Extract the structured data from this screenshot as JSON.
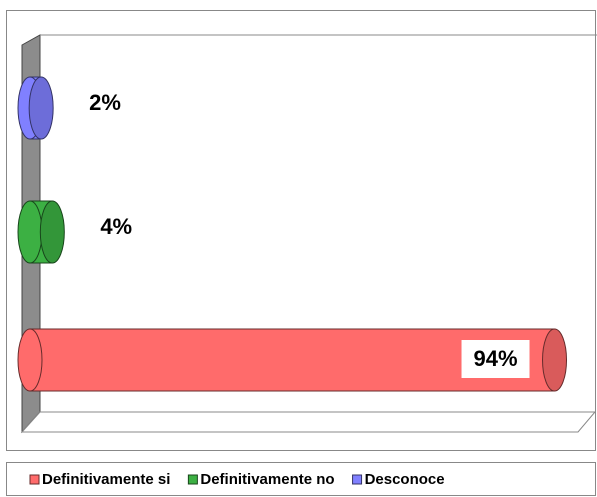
{
  "chart_data": {
    "type": "bar3d",
    "orientation": "horizontal",
    "categories": [
      null
    ],
    "series": [
      {
        "name": "Definitivamente si",
        "color": "#ff6b6b",
        "values": [
          94
        ],
        "value_labels": [
          "94%"
        ]
      },
      {
        "name": "Definitivamente no",
        "color": "#3cb043",
        "values": [
          4
        ],
        "value_labels": [
          "4%"
        ]
      },
      {
        "name": "Desconoce",
        "color": "#8080ff",
        "values": [
          2
        ],
        "value_labels": [
          "2%"
        ]
      }
    ],
    "xlim": [
      0,
      100
    ],
    "legend": "bottom"
  }
}
